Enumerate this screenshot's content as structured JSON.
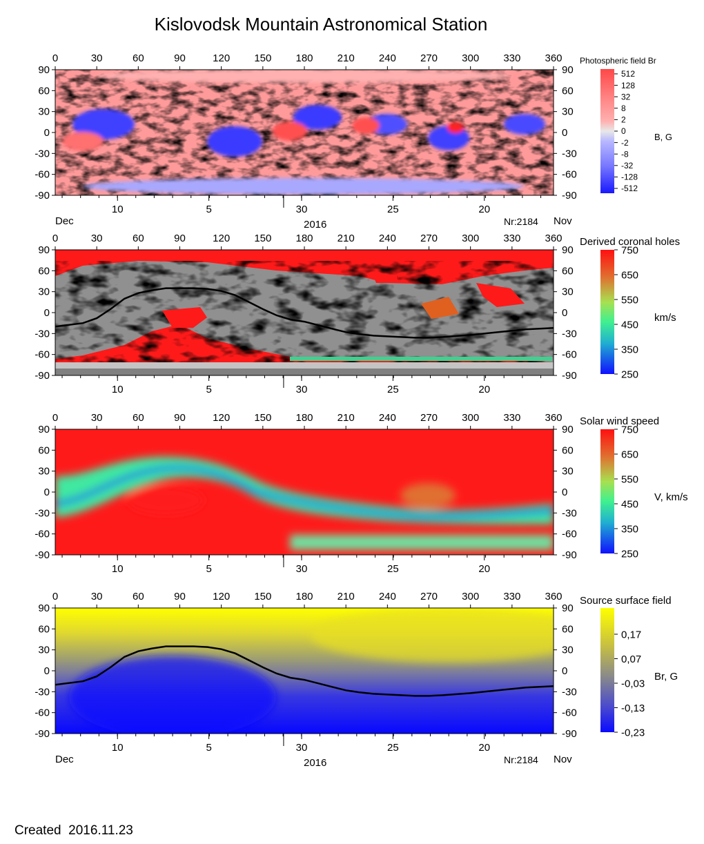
{
  "title": "Kislovodsk Mountain Astronomical Station",
  "footer": {
    "created_label": "Created",
    "created_date": "2016.11.23"
  },
  "axes": {
    "longitude_ticks": [
      0,
      30,
      60,
      90,
      120,
      150,
      180,
      210,
      240,
      270,
      300,
      330,
      360
    ],
    "latitude_ticks": [
      90,
      60,
      30,
      0,
      -30,
      -60,
      -90
    ],
    "date_ticks": [
      {
        "label": "10",
        "lon": 45
      },
      {
        "label": "5",
        "lon": 111
      },
      {
        "label": "30",
        "lon": 178
      },
      {
        "label": "25",
        "lon": 244
      },
      {
        "label": "20",
        "lon": 310
      }
    ],
    "month_divider_lon": 165,
    "month_left": "Dec",
    "month_right": "Nov",
    "year": "2016",
    "rotation": "Nr:2184"
  },
  "colors": {
    "red": "#ff1a1a",
    "blue": "#1a1aff",
    "gray_dark": "#808080",
    "gray_light": "#c0c0c0",
    "yellow": "#ffff00",
    "neutral_line": "#000000"
  },
  "chart_data": [
    {
      "type": "heatmap",
      "title": "Photospheric field Br",
      "colorbar_label": "B, G",
      "colorbar_ticks": [
        "512",
        "128",
        "32",
        "8",
        "2",
        "0",
        "-2",
        "-8",
        "-32",
        "-128",
        "-512"
      ],
      "x_range": [
        0,
        360
      ],
      "y_range": [
        -90,
        90
      ],
      "xlabel": "",
      "ylabel": ""
    },
    {
      "type": "heatmap",
      "title": "Derived coronal holes",
      "colorbar_label": "km/s",
      "colorbar_ticks": [
        "750",
        "650",
        "550",
        "450",
        "350",
        "250"
      ],
      "x_range": [
        0,
        360
      ],
      "y_range": [
        -90,
        90
      ],
      "neutral_line": true
    },
    {
      "type": "heatmap",
      "title": "Solar wind speed",
      "colorbar_label": "V, km/s",
      "colorbar_ticks": [
        "750",
        "650",
        "550",
        "450",
        "350",
        "250"
      ],
      "x_range": [
        0,
        360
      ],
      "y_range": [
        -90,
        90
      ]
    },
    {
      "type": "heatmap",
      "title": "Source surface field",
      "colorbar_label": "Br, G",
      "colorbar_ticks": [
        "0,17",
        "0,07",
        "-0,03",
        "-0,13",
        "-0,23"
      ],
      "x_range": [
        0,
        360
      ],
      "y_range": [
        -90,
        90
      ],
      "neutral_line": true
    }
  ],
  "neutral_line": {
    "lon": [
      0,
      20,
      30,
      40,
      50,
      60,
      70,
      80,
      90,
      100,
      110,
      120,
      130,
      140,
      150,
      160,
      170,
      180,
      190,
      200,
      210,
      220,
      230,
      240,
      250,
      260,
      270,
      280,
      300,
      320,
      340,
      360
    ],
    "lat": [
      -20,
      -15,
      -8,
      5,
      20,
      28,
      32,
      35,
      35,
      35,
      34,
      31,
      25,
      15,
      5,
      -4,
      -10,
      -13,
      -18,
      -23,
      -28,
      -31,
      -33,
      -34,
      -35,
      -36,
      -36,
      -35,
      -32,
      -28,
      -24,
      -22
    ]
  }
}
